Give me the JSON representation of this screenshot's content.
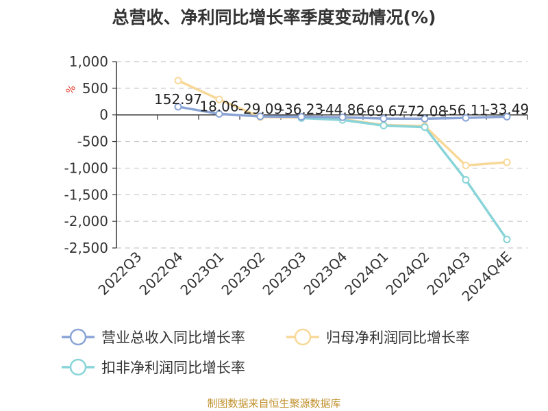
{
  "title": "总营收、净利同比增长率季度变动情况(%)",
  "unit_label": "%",
  "source": "制图数据来自恒生聚源数据库",
  "chart_data": {
    "type": "line",
    "title": "总营收、净利同比增长率季度变动情况(%)",
    "xlabel": "",
    "ylabel": "%",
    "categories": [
      "2022Q3",
      "2022Q4",
      "2023Q1",
      "2023Q2",
      "2023Q3",
      "2023Q4",
      "2024Q1",
      "2024Q2",
      "2024Q3",
      "2024Q4E"
    ],
    "ylim": [
      -2500,
      1000
    ],
    "yticks": [
      1000,
      500,
      0,
      -500,
      -1000,
      -1500,
      -2000,
      -2500
    ],
    "ytick_labels": [
      "1,000",
      "500",
      "0",
      "-500",
      "-1,000",
      "-1,500",
      "-2,000",
      "-2,500"
    ],
    "grid": true,
    "legend_position": "bottom",
    "series": [
      {
        "name": "营业总收入同比增长率",
        "color": "#8aa4d6",
        "values": [
          null,
          152.97,
          18.06,
          -29.09,
          -36.23,
          -44.86,
          -69.67,
          -72.08,
          -56.11,
          -33.49
        ],
        "labels": [
          "",
          "152.97",
          "18.06",
          "-29.09",
          "-36.23",
          "-44.86",
          "-69.67",
          "-72.08",
          "-56.11",
          "-33.49"
        ],
        "show_labels": true
      },
      {
        "name": "归母净利润同比增长率",
        "color": "#f8d898",
        "values": [
          null,
          645,
          290,
          -40,
          -50,
          -80,
          -190,
          -210,
          -950,
          -890
        ],
        "show_labels": false
      },
      {
        "name": "扣非净利润同比增长率",
        "color": "#88d4d8",
        "values": [
          null,
          null,
          null,
          null,
          -60,
          -95,
          -200,
          -230,
          -1220,
          -2340
        ],
        "show_labels": false
      }
    ]
  }
}
